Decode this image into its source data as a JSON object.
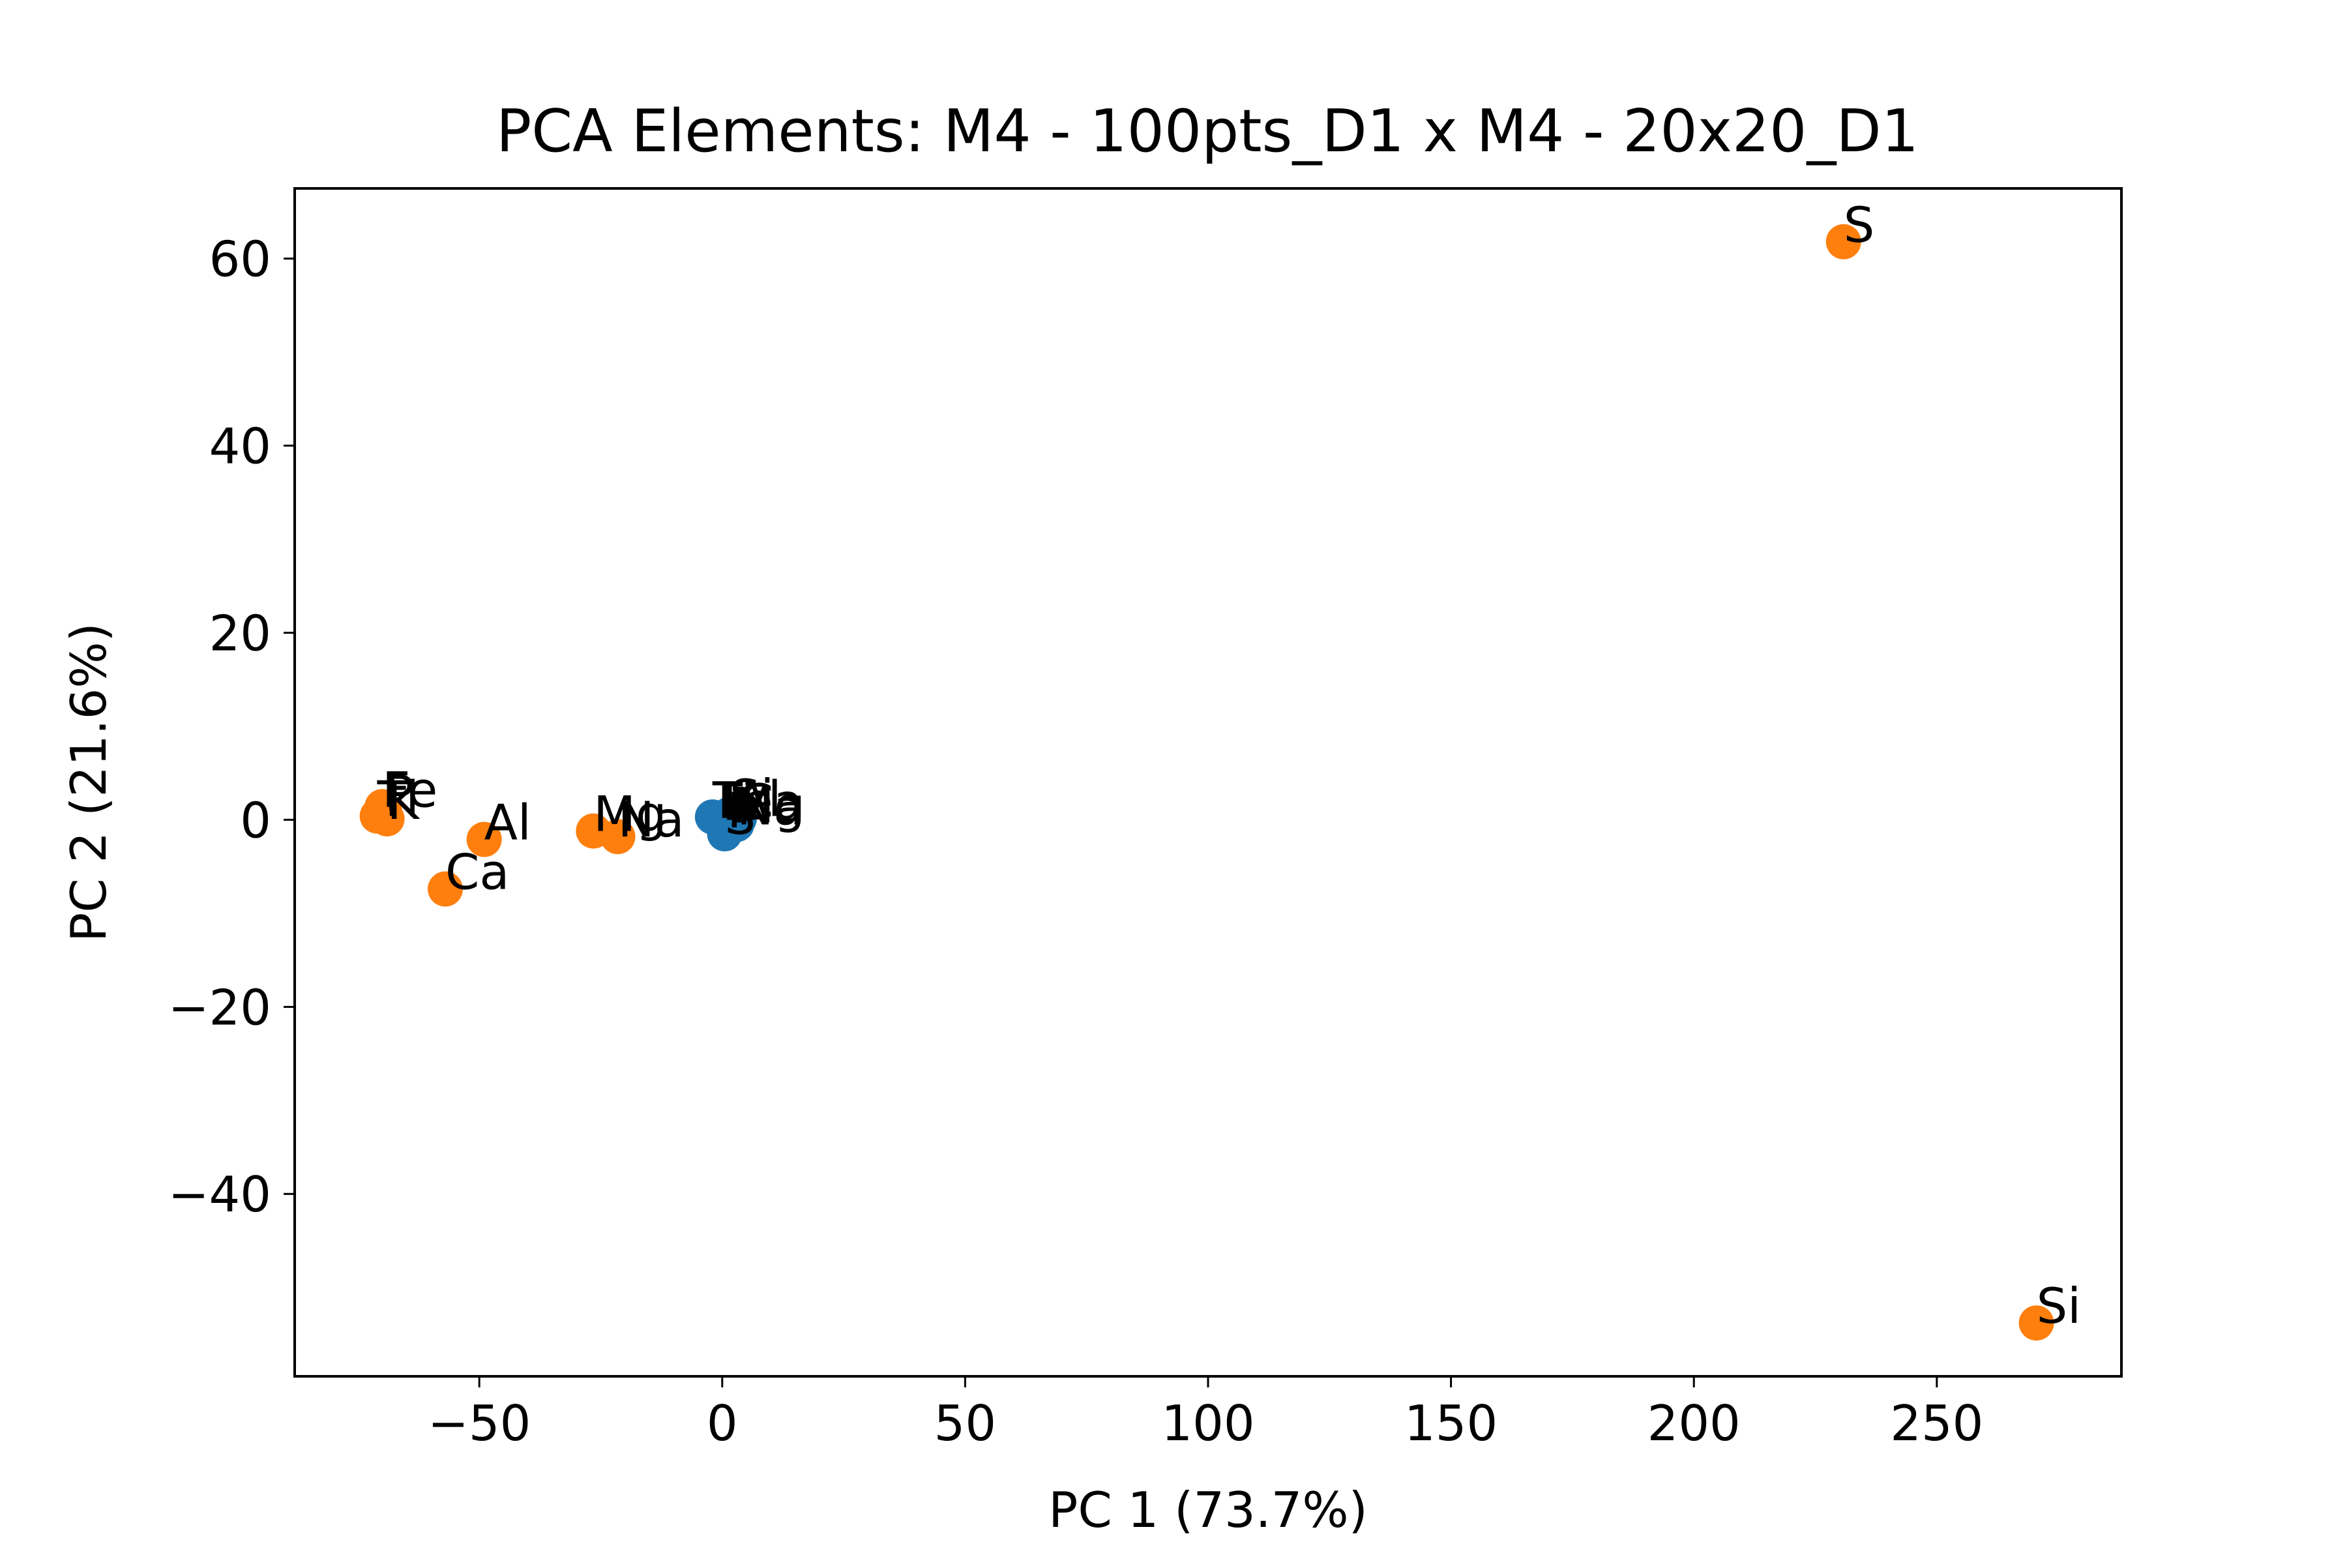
{
  "chart_data": {
    "type": "scatter",
    "title": "PCA Elements: M4 - 100pts_D1 x M4 - 20x20_D1",
    "xlabel": "PC 1 (73.7%)",
    "ylabel": "PC 2 (21.6%)",
    "xlim": [
      -88,
      288
    ],
    "ylim": [
      -59.5,
      67.5
    ],
    "x_ticks": [
      {
        "value": -50,
        "label": "−50"
      },
      {
        "value": 0,
        "label": "0"
      },
      {
        "value": 50,
        "label": "50"
      },
      {
        "value": 100,
        "label": "100"
      },
      {
        "value": 150,
        "label": "150"
      },
      {
        "value": 200,
        "label": "200"
      },
      {
        "value": 250,
        "label": "250"
      }
    ],
    "y_ticks": [
      {
        "value": -40,
        "label": "−40"
      },
      {
        "value": -20,
        "label": "−20"
      },
      {
        "value": 0,
        "label": "0"
      },
      {
        "value": 20,
        "label": "20"
      },
      {
        "value": 40,
        "label": "40"
      },
      {
        "value": 60,
        "label": "60"
      }
    ],
    "grid": false,
    "series": [
      {
        "color": "#1f77b4",
        "points": [
          {
            "x": -2.0,
            "y": 0.3,
            "label": "Ti"
          },
          {
            "x": -1.0,
            "y": 0.2,
            "label": "Fe"
          },
          {
            "x": 0.0,
            "y": 0.0,
            "label": "K"
          },
          {
            "x": 1.5,
            "y": 0.6,
            "label": "Si"
          },
          {
            "x": 2.0,
            "y": -0.3,
            "label": "Mg"
          },
          {
            "x": 3.0,
            "y": -0.5,
            "label": "Na"
          },
          {
            "x": 2.5,
            "y": 0.4,
            "label": "Al"
          },
          {
            "x": 3.5,
            "y": 0.1,
            "label": "Ca"
          },
          {
            "x": 0.5,
            "y": -1.5,
            "label": "S"
          },
          {
            "x": 1.0,
            "y": -0.8,
            "label": "P"
          }
        ]
      },
      {
        "color": "#ff7f0e",
        "points": [
          {
            "x": 230.8,
            "y": 61.8,
            "label": "S"
          },
          {
            "x": 270.5,
            "y": -53.8,
            "label": "Si"
          },
          {
            "x": -71.0,
            "y": 0.4,
            "label": "Ti"
          },
          {
            "x": -70.0,
            "y": 1.4,
            "label": "Fe"
          },
          {
            "x": -69.0,
            "y": 0.1,
            "label": "K"
          },
          {
            "x": -69.5,
            "y": 1.0,
            "label": "P"
          },
          {
            "x": -49.0,
            "y": -2.1,
            "label": "Al"
          },
          {
            "x": -57.0,
            "y": -7.4,
            "label": "Ca"
          },
          {
            "x": -26.5,
            "y": -1.2,
            "label": "Mg"
          },
          {
            "x": -21.5,
            "y": -1.8,
            "label": "Na"
          }
        ]
      }
    ]
  }
}
